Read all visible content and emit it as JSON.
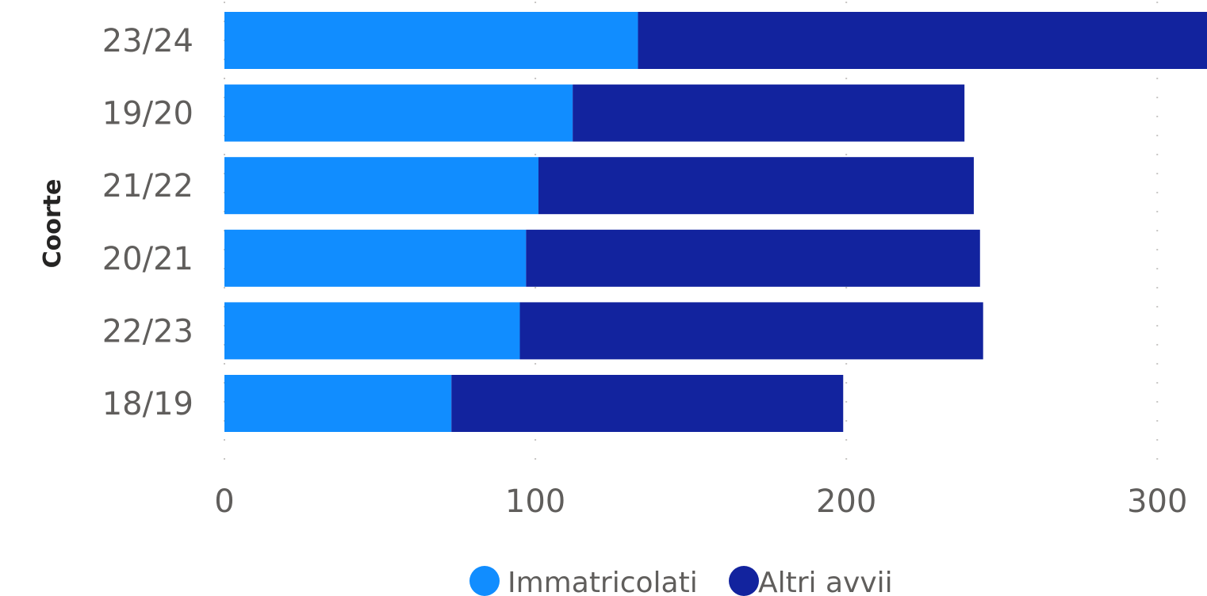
{
  "chart_data": {
    "type": "bar",
    "orientation": "horizontal",
    "stacked": true,
    "categories": [
      "23/24",
      "19/20",
      "21/22",
      "20/21",
      "22/23",
      "18/19"
    ],
    "series": [
      {
        "name": "Immatricolati",
        "color": "#118DFF",
        "values": [
          133,
          112,
          101,
          97,
          95,
          73
        ]
      },
      {
        "name": "Altri avvii",
        "color": "#12239E",
        "values": [
          183,
          126,
          140,
          146,
          149,
          126
        ]
      }
    ],
    "ylabel": "Coorte",
    "xlabel": "",
    "xlim": [
      0,
      316
    ],
    "xticks": [
      "0",
      "100",
      "200",
      "300"
    ],
    "grid": true,
    "legend_position": "bottom-center"
  }
}
